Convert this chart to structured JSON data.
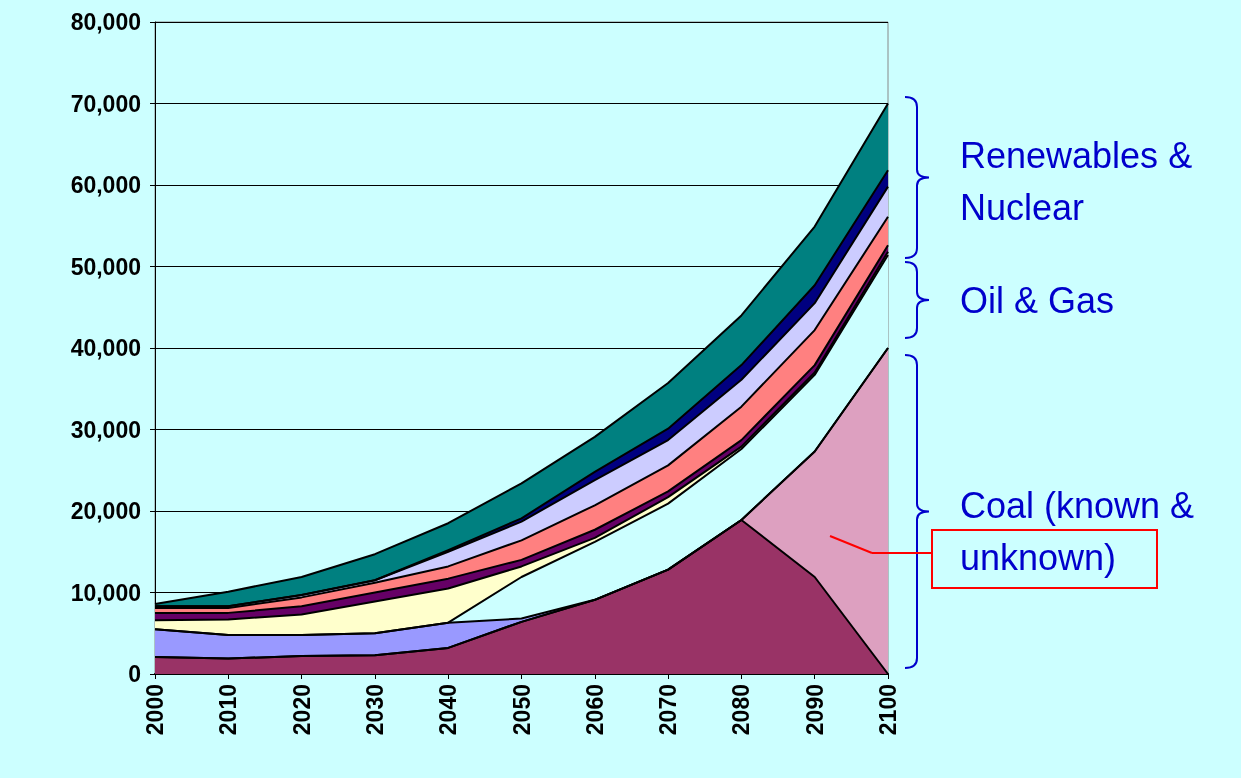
{
  "chart_data": {
    "type": "area",
    "stacked": true,
    "categories": [
      "2000",
      "2010",
      "2020",
      "2030",
      "2040",
      "2050",
      "2060",
      "2070",
      "2080",
      "2090",
      "2100"
    ],
    "series": [
      {
        "color": "#993366",
        "values": [
          2100,
          1900,
          2200,
          2300,
          3200,
          6400,
          9100,
          12800,
          18900,
          11900,
          0
        ]
      },
      {
        "color": "#dda0c0",
        "values": [
          0,
          0,
          0,
          0,
          0,
          0,
          0,
          0,
          0,
          15400,
          40000
        ]
      },
      {
        "color": "#9999ff",
        "values": [
          3400,
          2900,
          2600,
          2700,
          3100,
          400,
          0,
          0,
          0,
          0,
          0
        ]
      },
      {
        "color": "#ccffff",
        "values": [
          0,
          0,
          0,
          0,
          0,
          5100,
          7100,
          8100,
          8700,
          9400,
          11400
        ]
      },
      {
        "color": "#ffffcc",
        "values": [
          1100,
          1900,
          2500,
          3900,
          4200,
          1300,
          500,
          800,
          300,
          300,
          400
        ]
      },
      {
        "color": "#660066",
        "values": [
          900,
          800,
          1000,
          1100,
          1200,
          800,
          1000,
          700,
          800,
          900,
          800
        ]
      },
      {
        "color": "#ff8080",
        "values": [
          600,
          600,
          1100,
          1200,
          1500,
          2400,
          3000,
          3200,
          4100,
          4300,
          3500
        ]
      },
      {
        "color": "#ccccff",
        "values": [
          200,
          200,
          300,
          300,
          1800,
          2300,
          3100,
          3100,
          3300,
          3300,
          3700
        ]
      },
      {
        "color": "#000080",
        "values": [
          0,
          0,
          0,
          0,
          200,
          400,
          1000,
          1400,
          1800,
          2200,
          2000
        ]
      },
      {
        "color": "#008080",
        "values": [
          300,
          1800,
          2200,
          3200,
          3300,
          4300,
          4300,
          5600,
          6100,
          7200,
          8200
        ]
      }
    ],
    "ylim": [
      0,
      80000
    ],
    "yticks": [
      0,
      {
        "value": 10000,
        "label": "10,000"
      },
      {
        "value": 20000,
        "label": "20,000"
      },
      {
        "value": 30000,
        "label": "30,000"
      },
      {
        "value": 40000,
        "label": "40,000"
      },
      {
        "value": 50000,
        "label": "50,000"
      },
      {
        "value": 60000,
        "label": "60,000"
      },
      {
        "value": 70000,
        "label": "70,000"
      },
      {
        "value": 80000,
        "label": "80,000"
      }
    ],
    "grid": "y",
    "annotations": [
      "Renewables & Nuclear",
      "Oil & Gas",
      "Coal (known & unknown)"
    ]
  }
}
